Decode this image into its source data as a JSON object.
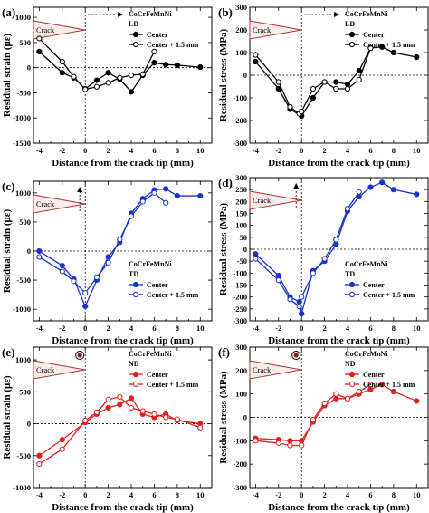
{
  "figure": {
    "x_tick_labels": [
      "-4",
      "-2",
      "0",
      "2",
      "4",
      "6",
      "8",
      "10"
    ],
    "legend_crack_label": "Crack"
  },
  "chart_data": [
    {
      "id": "a",
      "panel_label": "(a)",
      "type": "line",
      "material": "CoCrFeMnNi",
      "direction": "LD",
      "xlabel": "Distance from the crack tip (mm)",
      "ylabel": "Residual strain (με)",
      "xlim": [
        -4.5,
        11
      ],
      "ylim": [
        -1500,
        1200
      ],
      "yticks": [
        -1500,
        -1000,
        -500,
        0,
        500,
        1000
      ],
      "color": "#000000",
      "grid": false,
      "legend_position": "top-center",
      "series": [
        {
          "name": "Center",
          "marker": "filled",
          "x": [
            -4,
            -2,
            -1,
            0,
            1,
            2,
            3,
            4,
            5,
            6,
            7,
            8,
            10
          ],
          "y": [
            320,
            -100,
            -200,
            -420,
            -250,
            -100,
            -230,
            -480,
            -150,
            100,
            60,
            50,
            10
          ]
        },
        {
          "name": "Center + 1.5 mm",
          "marker": "open",
          "x": [
            -4,
            -2,
            -1,
            0,
            1,
            2,
            3,
            4,
            5,
            6
          ],
          "y": [
            580,
            120,
            -180,
            -430,
            -380,
            -300,
            -200,
            -150,
            -130,
            320
          ]
        }
      ]
    },
    {
      "id": "b",
      "panel_label": "(b)",
      "type": "line",
      "material": "CoCrFeMnNi",
      "direction": "LD",
      "xlabel": "Distance from the crack tip (mm)",
      "ylabel": "Residual stress (MPa)",
      "xlim": [
        -4.5,
        11
      ],
      "ylim": [
        -300,
        300
      ],
      "yticks": [
        -300,
        -200,
        -100,
        0,
        100,
        200,
        300
      ],
      "color": "#000000",
      "grid": false,
      "legend_position": "top-center",
      "series": [
        {
          "name": "Center",
          "marker": "filled",
          "x": [
            -4,
            -2,
            -1,
            0,
            1,
            2,
            3,
            4,
            5,
            6,
            7,
            8,
            10
          ],
          "y": [
            60,
            -60,
            -150,
            -180,
            -100,
            -30,
            -30,
            -40,
            20,
            120,
            125,
            100,
            80
          ]
        },
        {
          "name": "Center + 1.5 mm",
          "marker": "open",
          "x": [
            -4,
            -2,
            -1,
            -0.2,
            0,
            1,
            2,
            3,
            4,
            5,
            6
          ],
          "y": [
            90,
            -30,
            -140,
            -170,
            -160,
            -60,
            -30,
            -60,
            -60,
            -20,
            120
          ]
        }
      ]
    },
    {
      "id": "c",
      "panel_label": "(c)",
      "type": "line",
      "material": "CoCrFeMnNi",
      "direction": "TD",
      "xlabel": "Distance from the crack tip (mm)",
      "ylabel": "Residual strain (με)",
      "xlim": [
        -4.5,
        11
      ],
      "ylim": [
        -1200,
        1200
      ],
      "yticks": [
        -1000,
        -500,
        0,
        500,
        1000
      ],
      "color": "#1a34c8",
      "grid": false,
      "legend_position": "bottom-right",
      "series": [
        {
          "name": "Center",
          "marker": "filled",
          "x": [
            -4,
            -2,
            -1,
            0,
            1,
            2,
            3,
            4,
            5,
            6,
            7,
            8,
            10
          ],
          "y": [
            0,
            -250,
            -480,
            -950,
            -500,
            -100,
            150,
            650,
            900,
            1050,
            1070,
            950,
            950
          ]
        },
        {
          "name": "Center + 1.5 mm",
          "marker": "open",
          "x": [
            -4,
            -2,
            -1,
            0,
            1,
            2,
            3,
            4,
            5,
            6,
            7
          ],
          "y": [
            -100,
            -350,
            -520,
            -720,
            -450,
            -200,
            200,
            600,
            850,
            1000,
            830
          ]
        }
      ]
    },
    {
      "id": "d",
      "panel_label": "(d)",
      "type": "line",
      "material": "CoCrFeMnNi",
      "direction": "TD",
      "xlabel": "Distance from the crack tip (mm)",
      "ylabel": "Residual stress (MPa)",
      "xlim": [
        -4.5,
        11
      ],
      "ylim": [
        -300,
        300
      ],
      "yticks": [
        -300,
        -250,
        -200,
        -150,
        -100,
        -50,
        0,
        50,
        100,
        150,
        200,
        250,
        300
      ],
      "color": "#1a34c8",
      "grid": false,
      "legend_position": "bottom-right",
      "series": [
        {
          "name": "Center",
          "marker": "filled",
          "x": [
            -4,
            -2,
            -1,
            -0.2,
            0,
            1,
            2,
            3,
            4,
            5,
            6,
            7,
            8,
            10
          ],
          "y": [
            -20,
            -110,
            -200,
            -220,
            -270,
            -90,
            -50,
            20,
            160,
            220,
            260,
            280,
            250,
            230
          ]
        },
        {
          "name": "Center + 1.5 mm",
          "marker": "open",
          "x": [
            -4,
            -2,
            -1,
            -0.2,
            0,
            1,
            2,
            3,
            4,
            5
          ],
          "y": [
            -40,
            -130,
            -210,
            -240,
            -200,
            -100,
            -40,
            40,
            170,
            240
          ]
        }
      ]
    },
    {
      "id": "e",
      "panel_label": "(e)",
      "type": "line",
      "material": "CoCrFeMnNi",
      "direction": "ND",
      "xlabel": "Distance from the crack tip (mm)",
      "ylabel": "Residual strain (με)",
      "xlim": [
        -4.5,
        11
      ],
      "ylim": [
        -1000,
        1200
      ],
      "yticks": [
        -1000,
        -500,
        0,
        500,
        1000
      ],
      "color": "#e02020",
      "grid": false,
      "legend_position": "top-center",
      "series": [
        {
          "name": "Center",
          "marker": "filled",
          "x": [
            -4,
            -2,
            0,
            1,
            2,
            3,
            4,
            5,
            6,
            7,
            8,
            10
          ],
          "y": [
            -500,
            -250,
            20,
            150,
            250,
            300,
            400,
            150,
            100,
            150,
            50,
            0
          ]
        },
        {
          "name": "Center + 1.5 mm",
          "marker": "open",
          "x": [
            -4,
            -2,
            0,
            1,
            2,
            3,
            4,
            5,
            6,
            7,
            8,
            10
          ],
          "y": [
            -630,
            -400,
            50,
            180,
            380,
            420,
            250,
            200,
            150,
            100,
            70,
            -60
          ]
        }
      ]
    },
    {
      "id": "f",
      "panel_label": "(f)",
      "type": "line",
      "material": "CoCrFeMnNi",
      "direction": "ND",
      "xlabel": "Distance from the crack tip (mm)",
      "ylabel": "Residual stress (MPa)",
      "xlim": [
        -4.5,
        11
      ],
      "ylim": [
        -300,
        300
      ],
      "yticks": [
        -300,
        -200,
        -100,
        0,
        100,
        200,
        300
      ],
      "color": "#e02020",
      "grid": false,
      "legend_position": "top-center",
      "series": [
        {
          "name": "Center",
          "marker": "filled",
          "x": [
            -4,
            -2,
            -1,
            0,
            1,
            2,
            3,
            4,
            5,
            6,
            7,
            8,
            10
          ],
          "y": [
            -90,
            -95,
            -100,
            -100,
            -20,
            50,
            80,
            80,
            100,
            120,
            140,
            110,
            70
          ]
        },
        {
          "name": "Center + 1.5 mm",
          "marker": "open",
          "x": [
            -4,
            -2,
            -1,
            0,
            1,
            2,
            3,
            4,
            5,
            6
          ],
          "y": [
            -100,
            -110,
            -120,
            -120,
            -10,
            60,
            100,
            80,
            110,
            140
          ]
        }
      ]
    }
  ]
}
